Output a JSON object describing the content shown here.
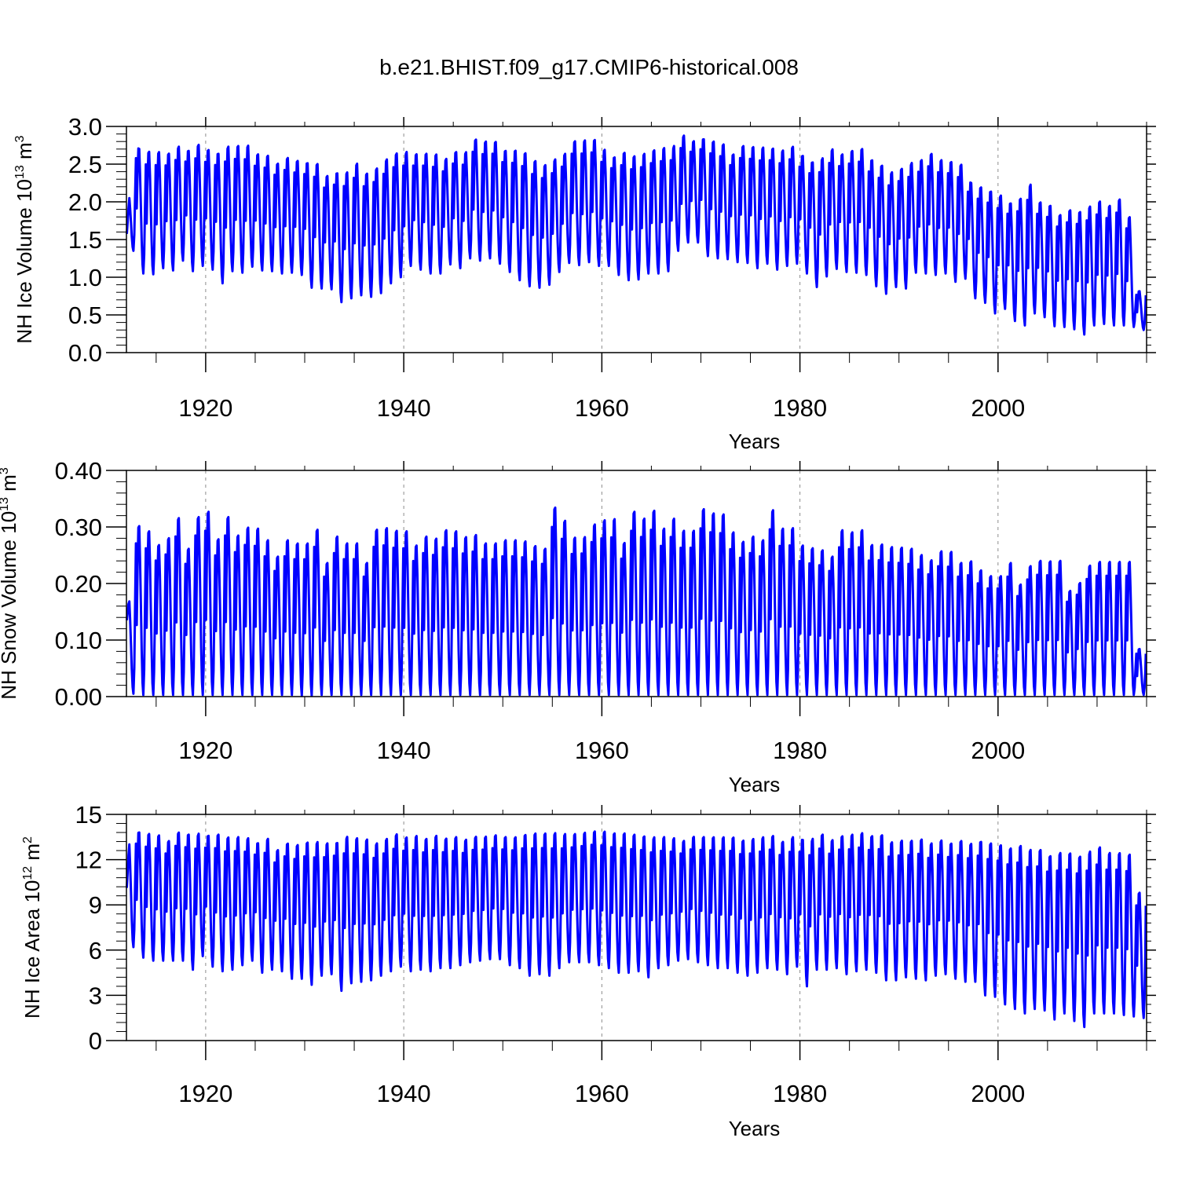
{
  "title": "b.e21.BHIST.f09_g17.CMIP6-historical.008",
  "colors": {
    "series": "#0000ff",
    "axis": "#000000",
    "grid": "#8c8c8c"
  },
  "chart_data": [
    {
      "type": "line",
      "title": "",
      "xlabel": "Years",
      "ylabel": {
        "main": "NH Ice Volume 10",
        "sup": "13",
        "unit": " m",
        "unit_sup": "3"
      },
      "xlim": [
        1912,
        2015
      ],
      "ylim": [
        0,
        3
      ],
      "xticks": [
        "1920",
        "1940",
        "1960",
        "1980",
        "2000"
      ],
      "yticks": [
        "0.0",
        "0.5",
        "1.0",
        "1.5",
        "2.0",
        "2.5",
        "3.0"
      ],
      "grid": "vertical dashed at major x ticks",
      "series": [
        {
          "start_year": 1912,
          "end_year": 2014,
          "annual_max": [
            2.1,
            2.82,
            2.78,
            2.77,
            2.75,
            2.84,
            2.79,
            2.87,
            2.8,
            2.76,
            2.85,
            2.86,
            2.86,
            2.74,
            2.72,
            2.61,
            2.69,
            2.65,
            2.63,
            2.62,
            2.45,
            2.5,
            2.51,
            2.63,
            2.49,
            2.56,
            2.68,
            2.76,
            2.77,
            2.74,
            2.75,
            2.74,
            2.67,
            2.77,
            2.76,
            2.94,
            2.91,
            2.91,
            2.79,
            2.8,
            2.77,
            2.66,
            2.6,
            2.67,
            2.74,
            2.92,
            2.93,
            2.94,
            2.8,
            2.7,
            2.77,
            2.72,
            2.75,
            2.8,
            2.83,
            2.84,
            2.98,
            2.9,
            2.94,
            2.91,
            2.87,
            2.73,
            2.85,
            2.84,
            2.83,
            2.82,
            2.79,
            2.84,
            2.72,
            2.64,
            2.69,
            2.81,
            2.74,
            2.79,
            2.82,
            2.67,
            2.6,
            2.5,
            2.55,
            2.62,
            2.66,
            2.75,
            2.66,
            2.64,
            2.6,
            2.36,
            2.3,
            2.25,
            2.19,
            2.09,
            2.16,
            2.35,
            2.1,
            2.06,
            1.93,
            2.0,
            1.98,
            2.05,
            2.12,
            2.06,
            2.15,
            1.9,
            0.85
          ],
          "annual_min": [
            1.35,
            1.05,
            1.04,
            1.12,
            1.09,
            1.22,
            1.08,
            1.15,
            1.1,
            0.92,
            1.08,
            1.06,
            1.14,
            1.09,
            1.08,
            1.05,
            1.06,
            1.03,
            0.86,
            0.85,
            0.84,
            0.67,
            0.72,
            0.76,
            0.74,
            0.79,
            0.92,
            1.0,
            1.15,
            1.1,
            1.05,
            1.05,
            1.17,
            1.12,
            1.25,
            1.22,
            1.25,
            1.18,
            1.07,
            0.96,
            0.88,
            0.86,
            0.9,
            1.07,
            1.19,
            1.16,
            1.2,
            1.15,
            1.15,
            1.03,
            0.96,
            0.97,
            1.05,
            1.05,
            1.08,
            1.35,
            1.46,
            1.46,
            1.28,
            1.25,
            1.24,
            1.2,
            1.19,
            1.12,
            1.18,
            1.1,
            1.15,
            1.18,
            1.05,
            0.87,
            1.01,
            1.11,
            1.07,
            1.06,
            1.03,
            0.88,
            0.78,
            0.87,
            0.85,
            1.06,
            1.05,
            1.03,
            1.05,
            0.94,
            0.98,
            0.72,
            0.66,
            0.52,
            0.58,
            0.42,
            0.36,
            0.52,
            0.47,
            0.35,
            0.34,
            0.31,
            0.24,
            0.36,
            0.38,
            0.36,
            0.36,
            0.34,
            0.3
          ]
        }
      ]
    },
    {
      "type": "line",
      "title": "",
      "xlabel": "Years",
      "ylabel": {
        "main": "NH Snow Volume 10",
        "sup": "13",
        "unit": " m",
        "unit_sup": "3"
      },
      "xlim": [
        1912,
        2015
      ],
      "ylim": [
        0,
        0.4
      ],
      "xticks": [
        "1920",
        "1940",
        "1960",
        "1980",
        "2000"
      ],
      "yticks": [
        "0.00",
        "0.10",
        "0.20",
        "0.30",
        "0.40"
      ],
      "grid": "vertical dashed at major x ticks",
      "series": [
        {
          "start_year": 1912,
          "end_year": 2014,
          "annual_max": [
            0.18,
            0.323,
            0.313,
            0.287,
            0.3,
            0.338,
            0.28,
            0.34,
            0.35,
            0.298,
            0.34,
            0.305,
            0.32,
            0.318,
            0.296,
            0.265,
            0.296,
            0.29,
            0.29,
            0.316,
            0.253,
            0.303,
            0.29,
            0.29,
            0.253,
            0.316,
            0.319,
            0.314,
            0.313,
            0.286,
            0.303,
            0.299,
            0.315,
            0.313,
            0.302,
            0.306,
            0.29,
            0.29,
            0.296,
            0.296,
            0.294,
            0.285,
            0.28,
            0.358,
            0.333,
            0.301,
            0.302,
            0.326,
            0.334,
            0.336,
            0.291,
            0.35,
            0.337,
            0.352,
            0.318,
            0.337,
            0.314,
            0.314,
            0.355,
            0.347,
            0.345,
            0.311,
            0.293,
            0.303,
            0.296,
            0.353,
            0.318,
            0.319,
            0.286,
            0.281,
            0.277,
            0.265,
            0.315,
            0.311,
            0.315,
            0.287,
            0.288,
            0.283,
            0.282,
            0.28,
            0.268,
            0.258,
            0.275,
            0.274,
            0.253,
            0.256,
            0.239,
            0.228,
            0.228,
            0.253,
            0.212,
            0.247,
            0.257,
            0.256,
            0.257,
            0.2,
            0.215,
            0.248,
            0.255,
            0.255,
            0.255,
            0.255,
            0.09
          ],
          "annual_min": [
            0.005,
            0.003,
            0.003,
            0.003,
            0.003,
            0.003,
            0.003,
            0.003,
            0.003,
            0.003,
            0.003,
            0.003,
            0.003,
            0.003,
            0.003,
            0.003,
            0.003,
            0.002,
            0.002,
            0.003,
            0.003,
            0.003,
            0.003,
            0.003,
            0.003,
            0.003,
            0.003,
            0.003,
            0.003,
            0.003,
            0.003,
            0.003,
            0.003,
            0.003,
            0.003,
            0.003,
            0.003,
            0.003,
            0.003,
            0.003,
            0.003,
            0.003,
            0.003,
            0.003,
            0.003,
            0.003,
            0.003,
            0.003,
            0.003,
            0.003,
            0.003,
            0.003,
            0.003,
            0.003,
            0.003,
            0.003,
            0.003,
            0.003,
            0.003,
            0.003,
            0.003,
            0.003,
            0.003,
            0.003,
            0.003,
            0.003,
            0.003,
            0.003,
            0.003,
            0.003,
            0.003,
            0.003,
            0.003,
            0.003,
            0.003,
            0.003,
            0.003,
            0.003,
            0.003,
            0.003,
            0.003,
            0.003,
            0.003,
            0.003,
            0.003,
            0.003,
            0.003,
            0.003,
            0.003,
            0.003,
            0.003,
            0.003,
            0.003,
            0.003,
            0.003,
            0.003,
            0.003,
            0.003,
            0.003,
            0.003,
            0.003,
            0.003,
            0.003
          ]
        }
      ]
    },
    {
      "type": "line",
      "title": "",
      "xlabel": "Years",
      "ylabel": {
        "main": "NH Ice Area 10",
        "sup": "12",
        "unit": " m",
        "unit_sup": "2"
      },
      "xlim": [
        1912,
        2015
      ],
      "ylim": [
        0,
        15
      ],
      "xticks": [
        "1920",
        "1940",
        "1960",
        "1980",
        "2000"
      ],
      "yticks": [
        "0",
        "3",
        "6",
        "9",
        "12",
        "15"
      ],
      "grid": "vertical dashed at major x ticks",
      "series": [
        {
          "start_year": 1912,
          "end_year": 2014,
          "annual_max": [
            13.5,
            14.4,
            14.3,
            14.2,
            13.8,
            14.4,
            14.3,
            14.3,
            14.2,
            14.3,
            14.1,
            14.1,
            14.0,
            13.7,
            14.0,
            13.2,
            13.7,
            13.6,
            13.8,
            13.8,
            13.7,
            13.8,
            14.2,
            14.1,
            14.0,
            13.7,
            14.0,
            14.3,
            14.1,
            14.2,
            14.0,
            14.2,
            14.0,
            14.1,
            13.9,
            14.1,
            14.1,
            14.2,
            14.1,
            14.1,
            14.3,
            14.4,
            14.4,
            14.4,
            14.3,
            14.3,
            14.4,
            14.5,
            14.5,
            14.4,
            14.4,
            14.3,
            14.2,
            14.1,
            14.1,
            14.0,
            13.8,
            14.1,
            14.1,
            14.1,
            14.1,
            14.1,
            13.9,
            14.0,
            14.1,
            14.2,
            13.8,
            14.1,
            14.0,
            14.0,
            14.3,
            13.9,
            14.2,
            14.3,
            14.4,
            14.2,
            14.3,
            13.8,
            13.9,
            13.9,
            14.0,
            13.7,
            13.9,
            13.7,
            13.9,
            13.7,
            13.9,
            13.8,
            13.7,
            13.5,
            13.7,
            13.4,
            13.4,
            13.0,
            13.2,
            13.2,
            13.0,
            13.3,
            13.6,
            13.2,
            13.2,
            13.1,
            10.4
          ],
          "annual_min": [
            6.2,
            5.5,
            5.3,
            5.3,
            5.3,
            5.3,
            4.7,
            5.6,
            4.9,
            4.6,
            4.7,
            5.0,
            5.3,
            4.5,
            4.7,
            4.6,
            4.1,
            4.1,
            3.7,
            4.3,
            4.4,
            3.3,
            3.8,
            3.9,
            4.0,
            4.3,
            4.6,
            4.9,
            4.6,
            4.7,
            4.6,
            4.8,
            4.8,
            5.0,
            5.2,
            5.3,
            5.4,
            5.4,
            5.0,
            4.8,
            4.3,
            4.4,
            4.3,
            4.8,
            5.2,
            5.2,
            5.2,
            5.0,
            4.8,
            4.5,
            4.5,
            4.6,
            4.2,
            4.8,
            5.0,
            5.3,
            5.4,
            5.2,
            5.0,
            4.8,
            4.8,
            4.5,
            4.3,
            4.5,
            4.8,
            4.7,
            4.4,
            4.9,
            3.6,
            4.7,
            4.7,
            4.8,
            4.4,
            4.6,
            4.7,
            4.5,
            4.0,
            4.0,
            4.2,
            4.1,
            4.0,
            4.3,
            4.4,
            4.1,
            3.9,
            3.9,
            3.0,
            2.9,
            2.4,
            2.1,
            1.8,
            2.1,
            2.0,
            1.4,
            1.8,
            1.3,
            0.9,
            1.8,
            1.8,
            1.8,
            1.7,
            1.6,
            1.5
          ]
        }
      ]
    }
  ]
}
